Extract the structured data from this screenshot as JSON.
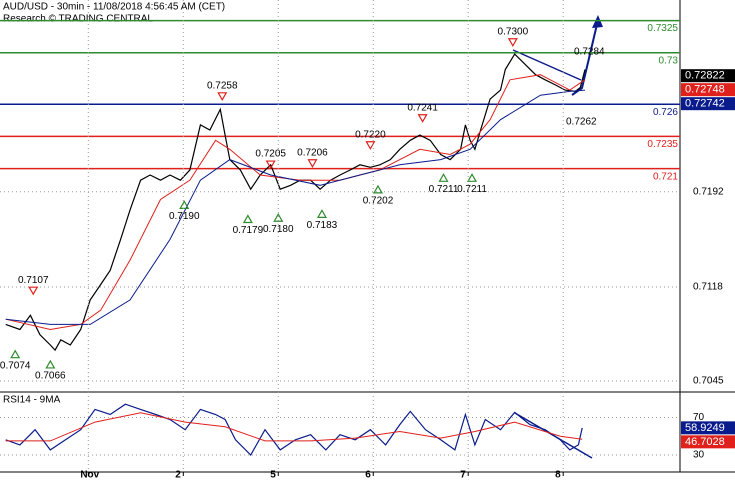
{
  "header": {
    "title": "AUD/USD - 30min - 11/08/2018 4:56:45 AM (CET)",
    "subtitle": "Research © TRADING CENTRAL"
  },
  "chart_data": [
    {
      "type": "line",
      "xlim": [
        -0.93,
        6.23
      ],
      "ylim": [
        0.7038,
        0.7341
      ],
      "yticks": [
        0.7045,
        0.7118,
        0.7192
      ],
      "grid": true,
      "levels": [
        {
          "value": 0.7325,
          "color": "#2e8b2e"
        },
        {
          "value": 0.73,
          "color": "#2e8b2e"
        },
        {
          "value": 0.726,
          "color": "#0a1c8c"
        },
        {
          "value": 0.7235,
          "color": "#e0201b"
        },
        {
          "value": 0.721,
          "color": "#e0201b"
        }
      ],
      "series": [
        {
          "color": "#000000",
          "x": [
            -0.87,
            -0.72,
            -0.61,
            -0.51,
            -0.4,
            -0.35,
            -0.29,
            -0.19,
            -0.08,
            0.02,
            0.13,
            0.23,
            0.34,
            0.44,
            0.55,
            0.65,
            0.76,
            0.86,
            0.97,
            1.07,
            1.18,
            1.28,
            1.39,
            1.44,
            1.49,
            1.6,
            1.71,
            1.81,
            1.92,
            2.02,
            2.13,
            2.23,
            2.34,
            2.44,
            2.55,
            2.65,
            2.76,
            2.86,
            2.97,
            3.07,
            3.18,
            3.28,
            3.39,
            3.49,
            3.6,
            3.71,
            3.81,
            3.92,
            3.97,
            4.02,
            4.07,
            4.13,
            4.23,
            4.34,
            4.39,
            4.49,
            4.6,
            4.71,
            4.81,
            4.92,
            5.02,
            5.13,
            5.18,
            5.23
          ],
          "values": [
            0.7089,
            0.7085,
            0.7096,
            0.7081,
            0.7073,
            0.7069,
            0.7077,
            0.7073,
            0.7085,
            0.7108,
            0.712,
            0.7131,
            0.7155,
            0.7178,
            0.7201,
            0.7205,
            0.7201,
            0.7205,
            0.7201,
            0.7209,
            0.7244,
            0.724,
            0.7256,
            0.7236,
            0.7217,
            0.7209,
            0.7194,
            0.7205,
            0.7213,
            0.7194,
            0.7197,
            0.7201,
            0.7201,
            0.7194,
            0.7201,
            0.7205,
            0.7209,
            0.7213,
            0.7211,
            0.7213,
            0.7217,
            0.7225,
            0.7232,
            0.7236,
            0.7232,
            0.7221,
            0.7217,
            0.7225,
            0.7244,
            0.7232,
            0.7225,
            0.724,
            0.7264,
            0.7271,
            0.7287,
            0.7299,
            0.7291,
            0.7283,
            0.7279,
            0.7275,
            0.7271,
            0.727,
            0.7273,
            0.7287
          ]
        },
        {
          "color": "#e0201b",
          "x": [
            -0.87,
            -0.4,
            -0.08,
            0.13,
            0.44,
            0.76,
            1.07,
            1.34,
            1.49,
            1.81,
            2.23,
            2.65,
            3.07,
            3.49,
            3.81,
            4.02,
            4.23,
            4.44,
            4.76,
            5.07,
            5.23
          ],
          "values": [
            0.7093,
            0.7085,
            0.7089,
            0.71,
            0.7139,
            0.7186,
            0.7201,
            0.7232,
            0.7225,
            0.7205,
            0.7201,
            0.7201,
            0.7209,
            0.7225,
            0.7221,
            0.7229,
            0.7248,
            0.7279,
            0.7283,
            0.7271,
            0.7279
          ]
        },
        {
          "color": "#0a1c8c",
          "x": [
            -0.87,
            -0.4,
            0.02,
            0.44,
            0.86,
            1.18,
            1.49,
            1.92,
            2.44,
            2.86,
            3.28,
            3.71,
            4.02,
            4.34,
            4.76,
            5.07,
            5.23
          ],
          "values": [
            0.7093,
            0.7089,
            0.7089,
            0.7108,
            0.7155,
            0.7201,
            0.7217,
            0.7205,
            0.7197,
            0.7205,
            0.7213,
            0.7217,
            0.7225,
            0.7248,
            0.7267,
            0.727,
            0.7271
          ]
        }
      ],
      "pivots": {
        "x": [
          -0.58,
          -0.77,
          -0.4,
          1.41,
          1.01,
          1.68,
          2.0,
          1.92,
          2.36,
          2.46,
          2.97,
          3.05,
          3.52,
          3.74,
          4.04,
          4.47
        ],
        "values": [
          0.7107,
          0.7074,
          0.7066,
          0.7258,
          0.719,
          0.7179,
          0.718,
          0.7205,
          0.7206,
          0.7183,
          0.722,
          0.7202,
          0.7241,
          0.7211,
          0.7211,
          0.73
        ],
        "value_labels": [
          "0.7107",
          "0.7074",
          "0.7066",
          "0.7258",
          "0.7190",
          "0.7179",
          "0.7180",
          "0.7205",
          "0.7206",
          "0.7183",
          "0.7220",
          "0.7202",
          "0.7241",
          "0.7211",
          "0.7211",
          "0.7300"
        ],
        "direction": [
          "high",
          "low",
          "low",
          "high",
          "low",
          "low",
          "low",
          "high",
          "high",
          "low",
          "high",
          "low",
          "high",
          "low",
          "low",
          "high"
        ]
      },
      "targets": [
        "0.7284",
        "0.7262"
      ],
      "badges": [
        {
          "value": 0.72822,
          "color": "#000000"
        },
        {
          "value": 0.72748,
          "color": "#e0201b"
        },
        {
          "value": 0.72742,
          "color": "#0a1c8c"
        }
      ]
    },
    {
      "type": "line",
      "title": "RSI14 - 9MA",
      "xlim": [
        -0.93,
        6.23
      ],
      "ylim": [
        14,
        95
      ],
      "yticks": [
        30,
        70
      ],
      "xticks": [
        {
          "value": 0,
          "label": "Nov"
        },
        {
          "value": 1,
          "label": "2"
        },
        {
          "value": 2,
          "label": "5"
        },
        {
          "value": 3,
          "label": "6"
        },
        {
          "value": 4,
          "label": "7"
        },
        {
          "value": 5,
          "label": "8"
        }
      ],
      "grid": true,
      "series": [
        {
          "color": "#0a1c8c",
          "x": [
            -0.87,
            -0.72,
            -0.56,
            -0.4,
            -0.24,
            -0.08,
            0.07,
            0.23,
            0.39,
            0.55,
            0.71,
            0.86,
            1.02,
            1.18,
            1.34,
            1.44,
            1.55,
            1.71,
            1.86,
            2.02,
            2.18,
            2.34,
            2.5,
            2.65,
            2.81,
            2.97,
            3.13,
            3.28,
            3.39,
            3.55,
            3.71,
            3.86,
            3.97,
            4.07,
            4.18,
            4.34,
            4.49,
            4.65,
            4.81,
            4.97,
            5.07,
            5.16,
            5.2
          ],
          "values": [
            46.2,
            40.8,
            57.0,
            35.4,
            46.2,
            57.0,
            78.6,
            73.2,
            84.1,
            78.6,
            73.2,
            67.8,
            57.0,
            78.6,
            73.2,
            67.8,
            46.2,
            30.0,
            57.0,
            35.4,
            46.2,
            51.6,
            35.4,
            51.6,
            46.2,
            57.0,
            40.8,
            62.4,
            76.5,
            57.0,
            46.2,
            35.4,
            73.2,
            40.8,
            67.8,
            57.0,
            75.4,
            62.4,
            57.0,
            46.2,
            35.4,
            40.8,
            58.9
          ]
        },
        {
          "color": "#e0201b",
          "x": [
            -0.87,
            -0.4,
            0.07,
            0.55,
            1.02,
            1.44,
            1.86,
            2.34,
            2.81,
            3.28,
            3.71,
            4.07,
            4.49,
            4.97,
            5.2
          ],
          "values": [
            45,
            45,
            65,
            75,
            65,
            60,
            45,
            45,
            48,
            55,
            48,
            55,
            65,
            50,
            46.7
          ]
        }
      ],
      "badges": [
        {
          "value": 58.9249,
          "color": "#0a1c8c"
        },
        {
          "value": 46.7028,
          "color": "#e0201b"
        }
      ]
    }
  ]
}
